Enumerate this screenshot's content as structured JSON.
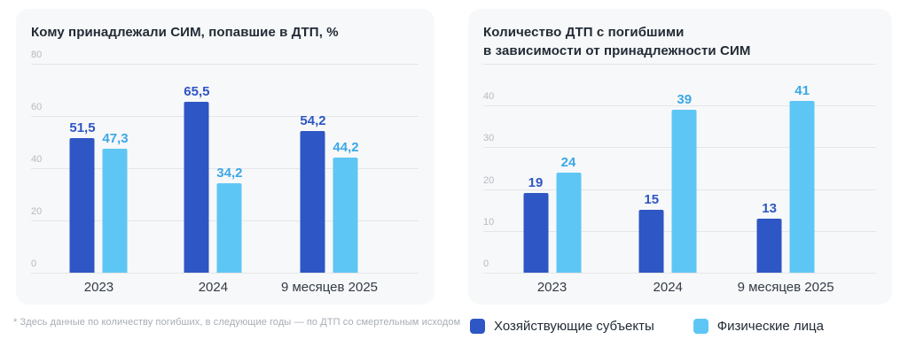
{
  "footnote": "* Здесь данные по количеству погибших, в следующие годы — по ДТП со смертельным исходом",
  "legend": {
    "items": [
      {
        "label": "Хозяйствующие субъекты",
        "color": "#2E56C4"
      },
      {
        "label": "Физические лица",
        "color": "#5EC6F4"
      }
    ]
  },
  "chart_data": [
    {
      "type": "bar",
      "title": "Кому принадлежали СИМ, попавшие в ДТП, %",
      "categories": [
        "2023",
        "2024",
        "9 месяцев 2025"
      ],
      "series": [
        {
          "name": "Хозяйствующие субъекты",
          "color": "#2E56C4",
          "label_color": "#2E56C4",
          "values": [
            51.5,
            65.5,
            54.2
          ],
          "labels": [
            "51,5",
            "65,5",
            "54,2"
          ]
        },
        {
          "name": "Физические лица",
          "color": "#5EC6F4",
          "label_color": "#3BA7E8",
          "values": [
            47.3,
            34.2,
            44.2
          ],
          "labels": [
            "47,3",
            "34,2",
            "44,2"
          ]
        }
      ],
      "xlabel": "",
      "ylabel": "",
      "ylim": [
        0,
        80
      ],
      "yticks": [
        0,
        20,
        40,
        60,
        80
      ],
      "top_gridline": false,
      "grid": true,
      "legend_position": "none"
    },
    {
      "type": "bar",
      "title": "Количество ДТП с погибшими\nв зависимости от принадлежности СИМ",
      "categories": [
        "2023",
        "2024",
        "9 месяцев 2025"
      ],
      "series": [
        {
          "name": "Хозяйствующие субъекты",
          "color": "#2E56C4",
          "label_color": "#2E56C4",
          "values": [
            19,
            15,
            13
          ],
          "labels": [
            "19",
            "15",
            "13"
          ]
        },
        {
          "name": "Физические лица",
          "color": "#5EC6F4",
          "label_color": "#3BA7E8",
          "values": [
            24,
            39,
            41
          ],
          "labels": [
            "24",
            "39",
            "41"
          ]
        }
      ],
      "xlabel": "",
      "ylabel": "",
      "ylim": [
        0,
        50
      ],
      "yticks": [
        0,
        10,
        20,
        30,
        40
      ],
      "top_gridline": true,
      "grid": true,
      "legend_position": "bottom"
    }
  ]
}
